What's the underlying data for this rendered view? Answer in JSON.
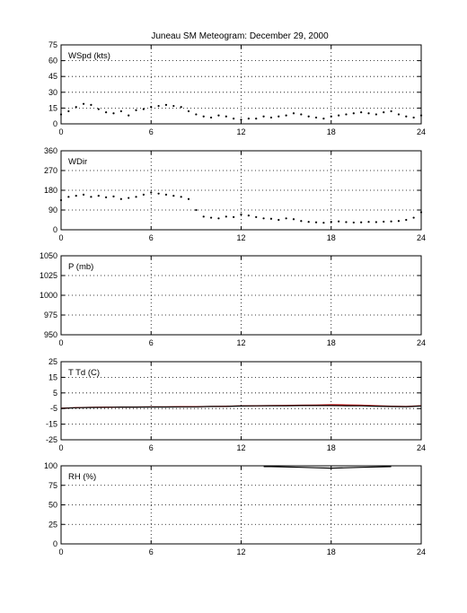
{
  "figure": {
    "title": "Juneau SM Meteogram:   December 29, 2000"
  },
  "chart_data": [
    {
      "type": "scatter",
      "label": "WSpd (kts)",
      "xlim": [
        0,
        24
      ],
      "xticks": [
        "0",
        "6",
        "12",
        "18",
        "24"
      ],
      "ylim": [
        0,
        75
      ],
      "yticks": [
        "0",
        "15",
        "30",
        "45",
        "60",
        "75"
      ],
      "grid": true,
      "series": [
        {
          "color": "#000000",
          "x": [
            0,
            0.5,
            1,
            1.5,
            2,
            2.5,
            3,
            3.5,
            4,
            4.5,
            5,
            5.5,
            6,
            6.5,
            7,
            7.5,
            8,
            8.5,
            9,
            9.5,
            10,
            10.5,
            11,
            11.5,
            12,
            12.5,
            13,
            13.5,
            14,
            14.5,
            15,
            15.5,
            16,
            16.5,
            17,
            17.5,
            18,
            18.5,
            19,
            19.5,
            20,
            20.5,
            21,
            21.5,
            22,
            22.5,
            23,
            23.5,
            24
          ],
          "values": [
            9,
            12,
            16,
            19,
            18,
            14,
            11,
            10,
            12,
            8,
            13,
            14,
            16,
            17,
            18,
            17,
            16,
            12,
            9,
            7,
            6,
            8,
            7,
            5,
            4,
            5,
            5,
            7,
            6,
            7,
            8,
            10,
            9,
            7,
            6,
            5,
            7,
            8,
            9,
            10,
            11,
            10,
            9,
            11,
            12,
            9,
            7,
            6,
            8
          ]
        }
      ]
    },
    {
      "type": "scatter",
      "label": "WDir",
      "xlim": [
        0,
        24
      ],
      "xticks": [
        "0",
        "6",
        "12",
        "18",
        "24"
      ],
      "ylim": [
        0,
        360
      ],
      "yticks": [
        "0",
        "90",
        "180",
        "270",
        "360"
      ],
      "grid": true,
      "series": [
        {
          "color": "#000000",
          "x": [
            0,
            0.5,
            1,
            1.5,
            2,
            2.5,
            3,
            3.5,
            4,
            4.5,
            5,
            5.5,
            6,
            6.5,
            7,
            7.5,
            8,
            8.5,
            9,
            9.5,
            10,
            10.5,
            11,
            11.5,
            12,
            12.5,
            13,
            13.5,
            14,
            14.5,
            15,
            15.5,
            16,
            16.5,
            17,
            17.5,
            18,
            18.5,
            19,
            19.5,
            20,
            20.5,
            21,
            21.5,
            22,
            22.5,
            23,
            23.5,
            24
          ],
          "values": [
            135,
            150,
            155,
            160,
            150,
            155,
            148,
            152,
            140,
            145,
            150,
            160,
            170,
            165,
            160,
            155,
            150,
            140,
            90,
            60,
            55,
            52,
            60,
            58,
            70,
            65,
            58,
            52,
            50,
            45,
            52,
            48,
            40,
            36,
            34,
            32,
            36,
            38,
            35,
            33,
            34,
            36,
            35,
            37,
            38,
            40,
            45,
            55,
            80
          ]
        }
      ]
    },
    {
      "type": "line",
      "label": "P (mb)",
      "xlim": [
        0,
        24
      ],
      "xticks": [
        "0",
        "6",
        "12",
        "18",
        "24"
      ],
      "ylim": [
        950,
        1050
      ],
      "yticks": [
        "950",
        "975",
        "1000",
        "1025",
        "1050"
      ],
      "grid": true,
      "series": []
    },
    {
      "type": "line",
      "label": "T Td (C)",
      "xlim": [
        0,
        24
      ],
      "xticks": [
        "0",
        "6",
        "12",
        "18",
        "24"
      ],
      "ylim": [
        -25,
        25
      ],
      "yticks": [
        "-25",
        "-15",
        "-5",
        "5",
        "15",
        "25"
      ],
      "grid": true,
      "series": [
        {
          "color": "#cc0000",
          "x": [
            0,
            1,
            2,
            3,
            4,
            5,
            6,
            7,
            8,
            9,
            10,
            11,
            12,
            13,
            14,
            15,
            16,
            17,
            18,
            19,
            20,
            21,
            22,
            23,
            24
          ],
          "values": [
            -4.8,
            -4.4,
            -4.2,
            -4.1,
            -4.0,
            -4.0,
            -3.9,
            -3.9,
            -3.8,
            -3.8,
            -3.6,
            -3.5,
            -3.3,
            -3.2,
            -3.1,
            -3.0,
            -2.9,
            -2.8,
            -2.6,
            -2.7,
            -2.9,
            -3.2,
            -3.5,
            -3.6,
            -3.2
          ]
        },
        {
          "color": "#000000",
          "x": [
            0,
            1,
            2,
            3,
            4,
            5,
            6,
            7,
            8,
            9,
            10,
            11,
            12,
            13,
            14,
            15,
            16,
            17,
            18,
            19,
            20,
            21,
            22,
            23,
            24
          ],
          "values": [
            -4.9,
            -4.5,
            -4.3,
            -4.2,
            -4.1,
            -4.1,
            -4.0,
            -4.0,
            -3.9,
            -3.9,
            -3.7,
            -3.6,
            -3.4,
            -3.3,
            -3.2,
            -3.2,
            -3.1,
            -3.1,
            -3.1,
            -3.2,
            -3.3,
            -3.5,
            -3.7,
            -3.8,
            -3.4
          ]
        }
      ]
    },
    {
      "type": "line",
      "label": "RH (%)",
      "xlim": [
        0,
        24
      ],
      "xticks": [
        "0",
        "6",
        "12",
        "18",
        "24"
      ],
      "ylim": [
        0,
        100
      ],
      "yticks": [
        "0",
        "25",
        "50",
        "75",
        "100"
      ],
      "grid": true,
      "series": [
        {
          "color": "#000000",
          "x": [
            13.5,
            14,
            15,
            16,
            17,
            18,
            19,
            20,
            21,
            22
          ],
          "values": [
            99,
            99,
            98.5,
            98,
            97.5,
            97,
            97.5,
            98,
            98.5,
            99
          ]
        }
      ]
    }
  ]
}
